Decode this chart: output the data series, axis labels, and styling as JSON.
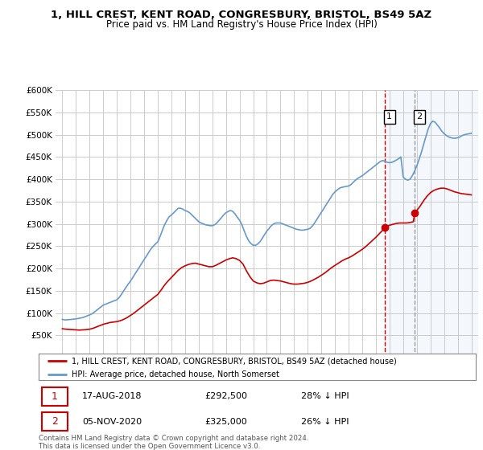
{
  "title1": "1, HILL CREST, KENT ROAD, CONGRESBURY, BRISTOL, BS49 5AZ",
  "title2": "Price paid vs. HM Land Registry's House Price Index (HPI)",
  "bg_color": "#ffffff",
  "plot_bg_color": "#ffffff",
  "grid_color": "#cccccc",
  "line1_color": "#cc0000",
  "line2_color": "#6699cc",
  "shade_color": "#ddeeff",
  "vline1_color": "#cc0000",
  "vline2_color": "#999999",
  "transaction1_date": "17-AUG-2018",
  "transaction1_price": "£292,500",
  "transaction1_hpi": "28% ↓ HPI",
  "transaction2_date": "05-NOV-2020",
  "transaction2_price": "£325,000",
  "transaction2_hpi": "26% ↓ HPI",
  "legend1": "1, HILL CREST, KENT ROAD, CONGRESBURY, BRISTOL, BS49 5AZ (detached house)",
  "legend2": "HPI: Average price, detached house, North Somerset",
  "footer": "Contains HM Land Registry data © Crown copyright and database right 2024.\nThis data is licensed under the Open Government Licence v3.0.",
  "ylim": [
    0,
    600000
  ],
  "yticks": [
    0,
    50000,
    100000,
    150000,
    200000,
    250000,
    300000,
    350000,
    400000,
    450000,
    500000,
    550000,
    600000
  ],
  "vline1_x": 2018.63,
  "vline2_x": 2020.84,
  "marker1_x": 2018.63,
  "marker1_y": 292500,
  "marker2_x": 2020.84,
  "marker2_y": 325000,
  "xlim_left": 1994.5,
  "xlim_right": 2025.5
}
